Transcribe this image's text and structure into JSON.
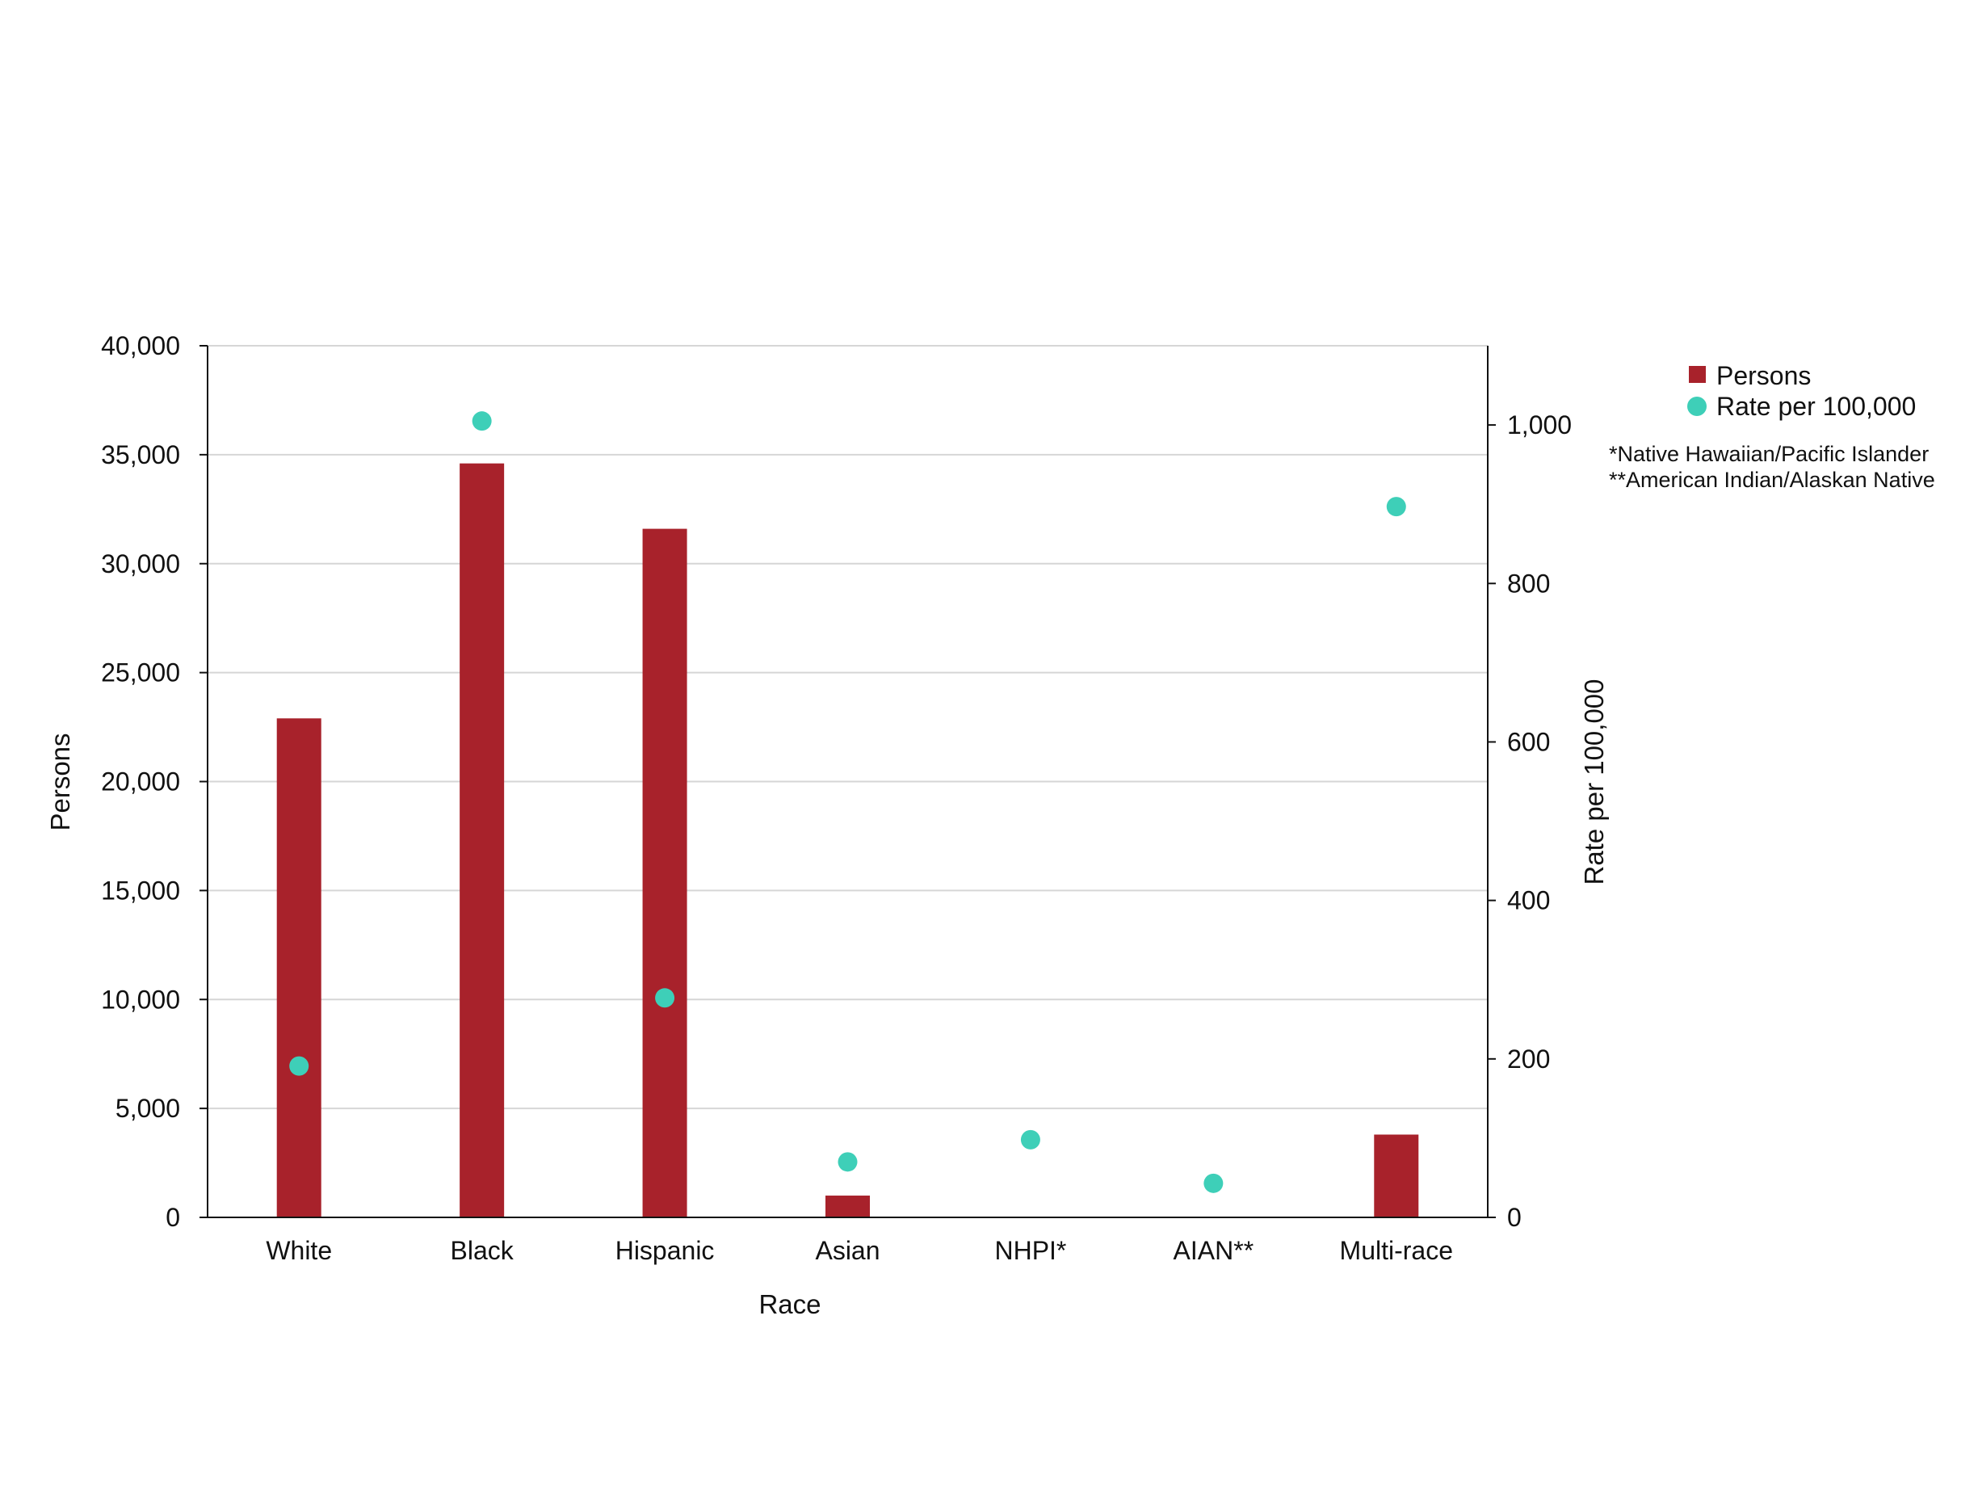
{
  "chart_data": {
    "type": "bar",
    "xlabel": "Race",
    "ylabel": "Persons",
    "y2label": "Rate per 100,000",
    "categories": [
      "White",
      "Black",
      "Hispanic",
      "Asian",
      "NHPI*",
      "AIAN**",
      "Multi-race"
    ],
    "series": [
      {
        "name": "Persons",
        "type": "bar",
        "axis": "left",
        "color": "#a8222b",
        "values": [
          22900,
          34600,
          31600,
          1000,
          0,
          0,
          3800
        ]
      },
      {
        "name": "Rate per 100,000",
        "type": "scatter",
        "axis": "right",
        "color": "#3ecfb8",
        "values": [
          191,
          1005,
          277,
          70,
          98,
          43,
          897
        ]
      }
    ],
    "ylim": [
      0,
      40000
    ],
    "y2lim": [
      0,
      1100
    ],
    "yticks": [
      0,
      5000,
      10000,
      15000,
      20000,
      25000,
      30000,
      35000,
      40000
    ],
    "yticklabels": [
      "0",
      "5,000",
      "10,000",
      "15,000",
      "20,000",
      "25,000",
      "30,000",
      "35,000",
      "40,000"
    ],
    "y2ticks": [
      0,
      200,
      400,
      600,
      800,
      1000
    ],
    "y2ticklabels": [
      "0",
      "200",
      "400",
      "600",
      "800",
      "1,000"
    ],
    "grid": true,
    "legend_position": "top-right",
    "footnotes": [
      "*Native Hawaiian/Pacific Islander",
      "**American Indian/Alaskan Native"
    ]
  }
}
